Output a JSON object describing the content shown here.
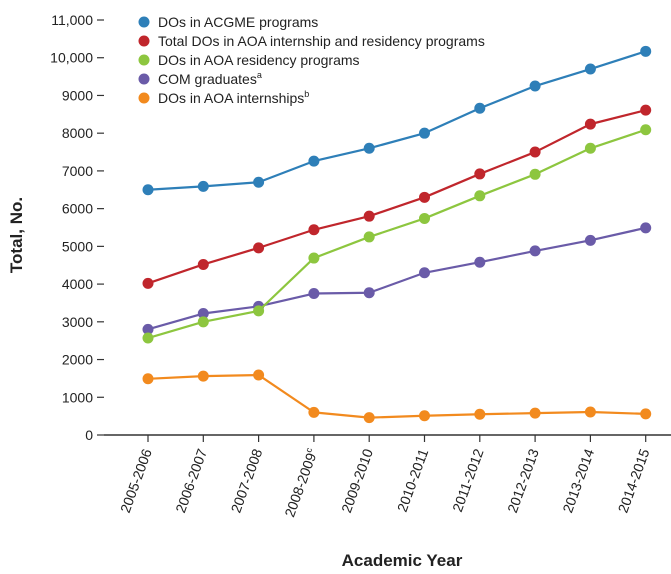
{
  "chart_data": {
    "type": "line",
    "xlabel": "Academic Year",
    "ylabel": "Total, No.",
    "ylim": [
      0,
      11000
    ],
    "yticks": [
      {
        "value": 0,
        "label": "0"
      },
      {
        "value": 1000,
        "label": "1000"
      },
      {
        "value": 2000,
        "label": "2000"
      },
      {
        "value": 3000,
        "label": "3000"
      },
      {
        "value": 4000,
        "label": "4000"
      },
      {
        "value": 5000,
        "label": "5000"
      },
      {
        "value": 6000,
        "label": "6000"
      },
      {
        "value": 7000,
        "label": "7000"
      },
      {
        "value": 8000,
        "label": "8000"
      },
      {
        "value": 9000,
        "label": "9000"
      },
      {
        "value": 10000,
        "label": "10,000"
      },
      {
        "value": 11000,
        "label": "11,000"
      }
    ],
    "categories": [
      {
        "label": "2005-2006",
        "sup": ""
      },
      {
        "label": "2006-2007",
        "sup": ""
      },
      {
        "label": "2007-2008",
        "sup": ""
      },
      {
        "label": "2008-2009",
        "sup": "c"
      },
      {
        "label": "2009-2010",
        "sup": ""
      },
      {
        "label": "2010-2011",
        "sup": ""
      },
      {
        "label": "2011-2012",
        "sup": ""
      },
      {
        "label": "2012-2013",
        "sup": ""
      },
      {
        "label": "2013-2014",
        "sup": ""
      },
      {
        "label": "2014-2015",
        "sup": ""
      }
    ],
    "legend_position": "top-left",
    "grid": false,
    "series": [
      {
        "name": "DOs in ACGME programs",
        "sup": "",
        "color": "#2e7fb8",
        "values": [
          6500,
          6590,
          6700,
          7260,
          7600,
          8000,
          8660,
          9250,
          9700,
          10170
        ]
      },
      {
        "name": "Total DOs in AOA internship and residency programs",
        "sup": "",
        "color": "#c0262c",
        "values": [
          4020,
          4520,
          4960,
          5440,
          5800,
          6300,
          6920,
          7500,
          8240,
          8610
        ]
      },
      {
        "name": "DOs in AOA residency programs",
        "sup": "",
        "color": "#8dc63f",
        "values": [
          2570,
          3000,
          3290,
          4690,
          5250,
          5740,
          6340,
          6910,
          7600,
          8090
        ]
      },
      {
        "name": "COM graduates",
        "sup": "a",
        "color": "#6a5ba8",
        "values": [
          2800,
          3220,
          3410,
          3750,
          3770,
          4300,
          4580,
          4880,
          5160,
          5490
        ]
      },
      {
        "name": "DOs in AOA internships",
        "sup": "b",
        "color": "#f28a1e",
        "values": [
          1490,
          1560,
          1590,
          600,
          460,
          510,
          550,
          580,
          610,
          560
        ]
      }
    ]
  }
}
